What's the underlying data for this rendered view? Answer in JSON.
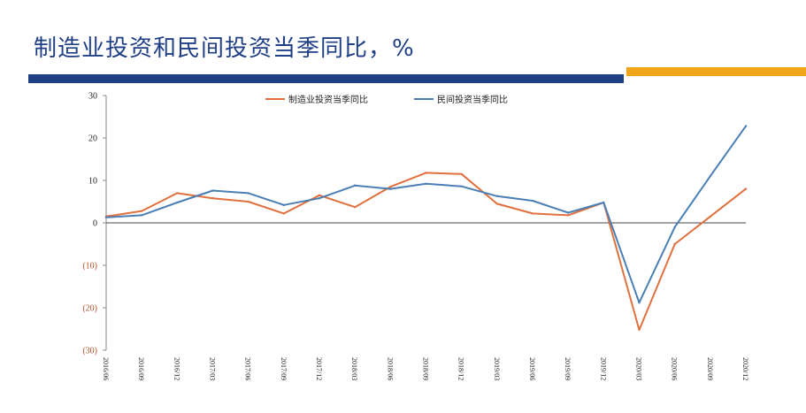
{
  "header": {
    "title": "制造业投资和民间投资当季同比，%"
  },
  "colors": {
    "title": "#1f3f86",
    "bar_blue": "#1f3f86",
    "bar_orange": "#f0a419",
    "series_manufacturing": "#e0703d",
    "series_private": "#4a7fb5",
    "negative_tick": "#b5502a"
  },
  "chart_data": {
    "type": "line",
    "x": [
      "2016/06",
      "2016/09",
      "2016/12",
      "2017/03",
      "2017/06",
      "2017/09",
      "2017/12",
      "2018/03",
      "2018/06",
      "2018/09",
      "2018/12",
      "2019/03",
      "2019/06",
      "2019/09",
      "2019/12",
      "2020/03",
      "2020/06",
      "2020/09",
      "2020/12"
    ],
    "series": [
      {
        "name": "制造业投资当季同比",
        "values": [
          1.5,
          2.8,
          7.0,
          5.8,
          5.0,
          2.2,
          6.5,
          3.7,
          8.5,
          11.8,
          11.5,
          4.5,
          2.2,
          1.8,
          4.8,
          -25.2,
          -5.0,
          1.5,
          8.0
        ]
      },
      {
        "name": "民间投资当季同比",
        "values": [
          1.3,
          1.8,
          4.8,
          7.6,
          7.0,
          4.2,
          5.8,
          8.8,
          8.0,
          9.2,
          8.6,
          6.3,
          5.2,
          2.4,
          4.8,
          -18.8,
          -1.0,
          11.0,
          22.8
        ]
      }
    ],
    "y_ticks": [
      "30",
      "20",
      "10",
      "0",
      "(10)",
      "(20)",
      "(30)"
    ],
    "ylim": [
      -30,
      30
    ],
    "legend_position": "top-center",
    "grid": false
  }
}
